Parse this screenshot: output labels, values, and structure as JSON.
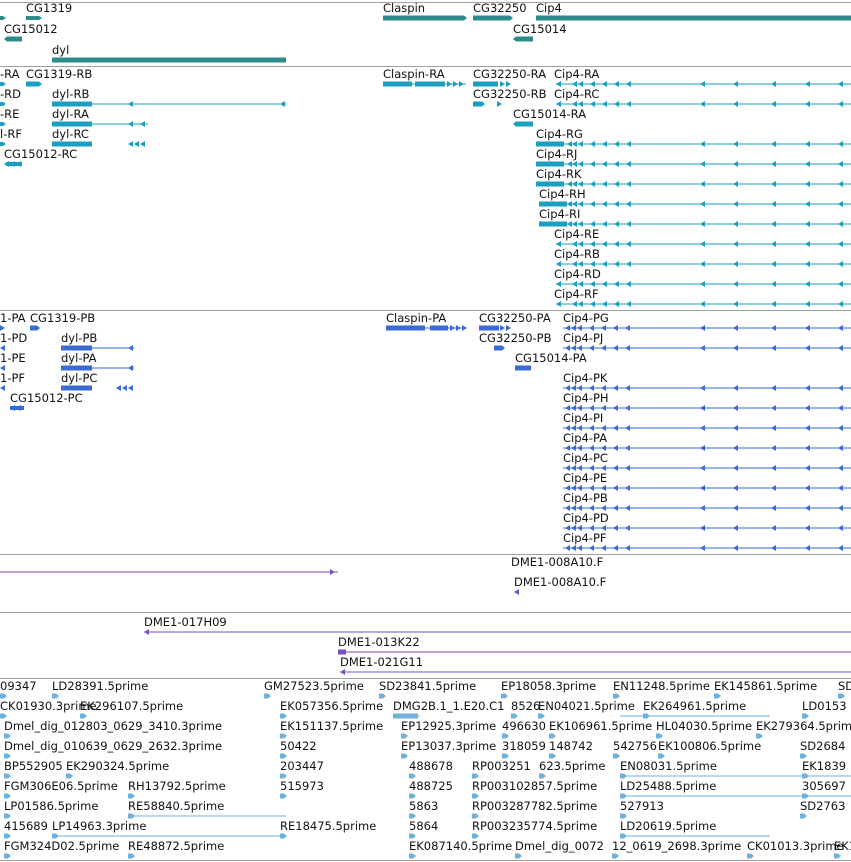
{
  "colors": {
    "gene": "#2e8b8b",
    "transcript": "#1a9fc0",
    "protein": "#3a6ad6",
    "clone": "#7a4fc0",
    "est": "#6fb0dc",
    "separator": "#a0a0a0"
  },
  "tracks": {
    "genes": {
      "labels": [
        "CG1319",
        "CG15012",
        "dyl",
        "Claspin",
        "CG32250",
        "Cip4",
        "CG15014"
      ]
    },
    "transcripts": {
      "labels": [
        "-RA",
        "CG1319-RB",
        "-RD",
        "dyl-RB",
        "-RE",
        "dyl-RA",
        "l-RF",
        "dyl-RC",
        "CG15012-RC",
        "Claspin-RA",
        "CG32250-RA",
        "Cip4-RA",
        "CG32250-RB",
        "Cip4-RC",
        "CG15014-RA",
        "Cip4-RG",
        "Cip4-RJ",
        "Cip4-RK",
        "Cip4-RH",
        "Cip4-RI",
        "Cip4-RE",
        "Cip4-RB",
        "Cip4-RD",
        "Cip4-RF"
      ]
    },
    "proteins": {
      "labels": [
        "1-PA",
        "CG1319-PB",
        "1-PD",
        "dyl-PB",
        "1-PE",
        "dyl-PA",
        "1-PF",
        "dyl-PC",
        "CG15012-PC",
        "Claspin-PA",
        "CG32250-PA",
        "Cip4-PG",
        "CG32250-PB",
        "Cip4-PJ",
        "CG15014-PA",
        "Cip4-PK",
        "Cip4-PH",
        "Cip4-PI",
        "Cip4-PA",
        "Cip4-PC",
        "Cip4-PE",
        "Cip4-PB",
        "Cip4-PD",
        "Cip4-PF"
      ]
    },
    "clones_a": {
      "labels": [
        "DME1-008A10.F",
        "DME1-008A10.F"
      ]
    },
    "clones_b": {
      "labels": [
        "DME1-017H09",
        "DME1-013K22",
        "DME1-021G11"
      ]
    },
    "ests": {
      "labels": [
        "09347",
        "LD28391.5prime",
        "GM27523.5prime",
        "SD23841.5prime",
        "EP18058.3prime",
        "EN11248.5prime",
        "EK145861.5prime",
        "SD",
        "CK01930.3prime",
        "EK296107.5prime",
        "EK057356.5prime",
        "DMG2B.1_1.E20.C1",
        "8526",
        "EN04021.5prime",
        "EK264961.5prime",
        "LD0153",
        "Dmel_dig_012803_0629_3410.3prime",
        "EK151137.5prime",
        "EP12925.3prime",
        "496630",
        "EK106961.5prime",
        "HL04030.5prime",
        "EK279364.5prime",
        "Dmel_dig_010639_0629_2632.3prime",
        "50422",
        "EP13037.3prime",
        "318059",
        "148742",
        "542756",
        "EK100806.5prime",
        "SD2684",
        "BP552905",
        "EK290324.5prime",
        "203447",
        "488678",
        "RP003251",
        "623.5prime",
        "EN08031.5prime",
        "EK1839",
        "FGM306E06.5prime",
        "RH13792.5prime",
        "515973",
        "488725",
        "RP003102857.5prime",
        "LD25488.5prime",
        "305697",
        "LP01586.5prime",
        "RE58840.5prime",
        "5863",
        "RP003287782.5prime",
        "527913",
        "SD2763",
        "415689",
        "LP14963.3prime",
        "RE18475.5prime",
        "5864",
        "RP003235774.5prime",
        "LD20619.5prime",
        "FGM324D02.5prime",
        "RE48872.5prime",
        "EK087140.5prime",
        "Dmel_dig_0072",
        "12_0619_2698.3prime",
        "CK01013.3prime",
        "EK1"
      ]
    }
  }
}
